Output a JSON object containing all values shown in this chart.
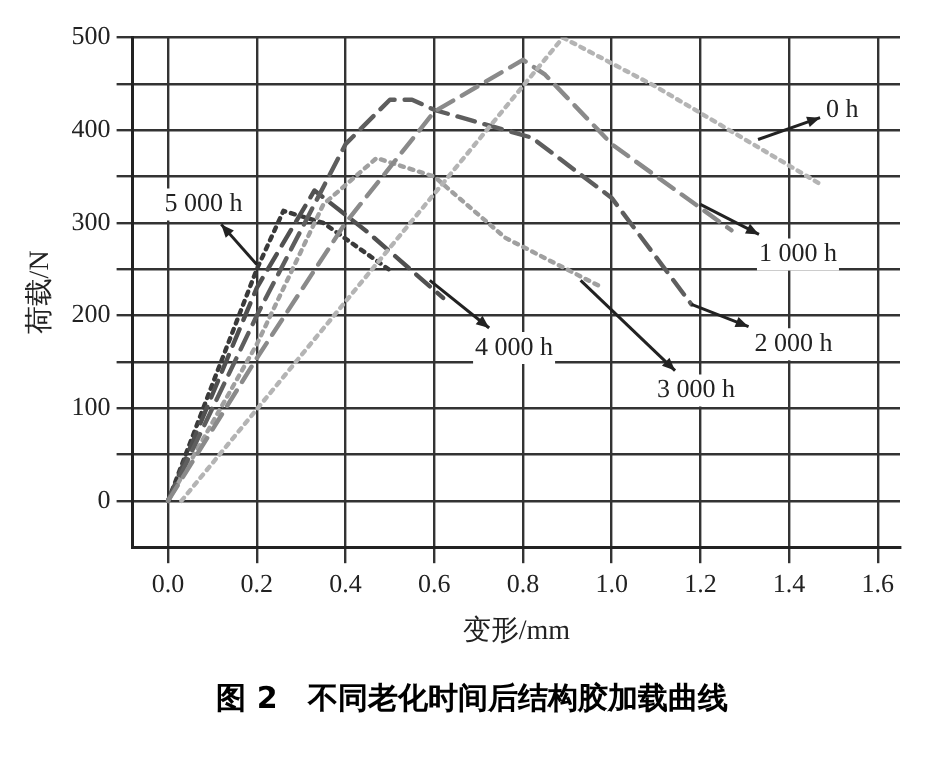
{
  "chart_data": {
    "type": "line",
    "title": "图 2　不同老化时间后结构胶加载曲线",
    "xlabel": "变形/mm",
    "ylabel": "荷载/N",
    "xlim": [
      -0.08,
      1.65
    ],
    "ylim": [
      -50,
      500
    ],
    "xticks": [
      {
        "value": 0,
        "label": "0.0"
      },
      {
        "value": 0.2,
        "label": "0.2"
      },
      {
        "value": 0.4,
        "label": "0.4"
      },
      {
        "value": 0.6,
        "label": "0.6"
      },
      {
        "value": 0.8,
        "label": "0.8"
      },
      {
        "value": 1,
        "label": "1.0"
      },
      {
        "value": 1.2,
        "label": "1.2"
      },
      {
        "value": 1.4,
        "label": "1.4"
      },
      {
        "value": 1.6,
        "label": "1.6"
      }
    ],
    "yticks": [
      0,
      {
        "value": 50,
        "label": null
      },
      100,
      {
        "value": 150,
        "label": null
      },
      200,
      {
        "value": 250,
        "label": null
      },
      300,
      {
        "value": 350,
        "label": null
      },
      400,
      {
        "value": 450,
        "label": null
      },
      500
    ],
    "grid": true,
    "legend": false,
    "marker": "none",
    "series": [
      {
        "name": "0 h",
        "color": "#b4b4b4",
        "line_style": "dotted",
        "x": [
          0.03,
          0.89,
          1.1,
          1.47
        ],
        "values": [
          0,
          500,
          447,
          342
        ]
      },
      {
        "name": "1 000 h",
        "color": "#8a8a8a",
        "line_style": "dashed",
        "x": [
          0,
          0.2,
          0.4,
          0.6,
          0.8,
          0.85,
          1.0,
          1.27
        ],
        "values": [
          0,
          154,
          300,
          420,
          476,
          460,
          385,
          292
        ]
      },
      {
        "name": "2 000 h",
        "color": "#5e5e5e",
        "line_style": "dashed",
        "x": [
          0,
          0.2,
          0.4,
          0.5,
          0.55,
          0.6,
          0.82,
          1.0,
          1.18
        ],
        "values": [
          0,
          200,
          385,
          433,
          433,
          422,
          392,
          327,
          212
        ]
      },
      {
        "name": "3 000 h",
        "color": "#a0a0a0",
        "line_style": "dotted",
        "x": [
          0,
          0.2,
          0.35,
          0.47,
          0.6,
          0.76,
          0.98
        ],
        "values": [
          0,
          169,
          320,
          370,
          350,
          284,
          230
        ]
      },
      {
        "name": "4 000 h",
        "color": "#505050",
        "line_style": "dashed",
        "x": [
          0,
          0.2,
          0.33,
          0.45,
          0.62
        ],
        "values": [
          0,
          230,
          335,
          290,
          219
        ]
      },
      {
        "name": "5 000 h",
        "color": "#3a3a3a",
        "line_style": "dotted",
        "x": [
          0,
          0.1,
          0.2,
          0.26,
          0.35,
          0.5
        ],
        "values": [
          0,
          126,
          250,
          313,
          300,
          249
        ]
      }
    ]
  }
}
